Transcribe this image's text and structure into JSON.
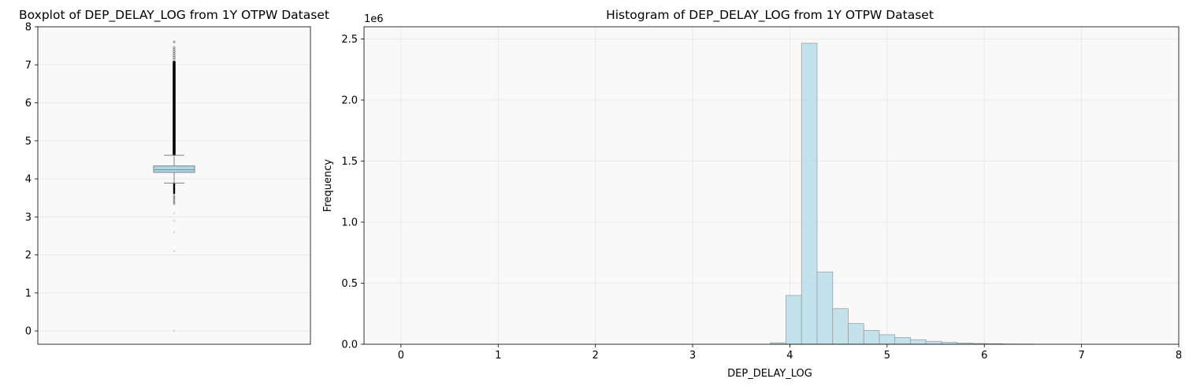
{
  "chart_data": [
    {
      "type": "boxplot",
      "title": "Boxplot of DEP_DELAY_LOG from 1Y OTPW Dataset",
      "xlabel": "",
      "ylabel": "",
      "ylim": [
        -0.35,
        8.0
      ],
      "yticks": [
        0,
        1,
        2,
        3,
        4,
        5,
        6,
        7,
        8
      ],
      "grid": true,
      "colors": {
        "box_fill": "#add8e6",
        "box_edge": "#808080",
        "background": "#f9f9f9",
        "outliers": "#000000"
      },
      "stats": {
        "q1": 4.17,
        "median": 4.24,
        "q3": 4.34,
        "whisker_low": 3.89,
        "whisker_high": 4.62
      },
      "outliers": {
        "dense_high": [
          4.62,
          7.1
        ],
        "sparse_high": [
          7.15,
          7.2,
          7.25,
          7.3,
          7.35,
          7.4,
          7.45,
          7.6
        ],
        "dense_low": [
          3.6,
          3.89
        ],
        "sparse_low": [
          3.35,
          3.4,
          3.45,
          3.5,
          3.55,
          3.1,
          2.9,
          2.6,
          2.1,
          0.0
        ]
      }
    },
    {
      "type": "bar",
      "subtype": "histogram",
      "title": "Histogram of DEP_DELAY_LOG from 1Y OTPW Dataset",
      "xlabel": "DEP_DELAY_LOG",
      "ylabel": "Frequency",
      "y_offset_text": "1e6",
      "xlim": [
        -0.38,
        8.0
      ],
      "ylim": [
        0,
        2.6
      ],
      "xticks": [
        0,
        1,
        2,
        3,
        4,
        5,
        6,
        7,
        8
      ],
      "yticks": [
        0.0,
        0.5,
        1.0,
        1.5,
        2.0,
        2.5
      ],
      "ytick_labels": [
        "0.0",
        "0.5",
        "1.0",
        "1.5",
        "2.0",
        "2.5"
      ],
      "grid": true,
      "colors": {
        "bar_fill": "#add8e6",
        "bar_edge": "#a0a0a0",
        "background": "#f9f9f9"
      },
      "bin_width": 0.16,
      "bins": [
        {
          "x0": 3.8,
          "value": 0.012
        },
        {
          "x0": 3.96,
          "value": 0.4
        },
        {
          "x0": 4.12,
          "value": 2.465
        },
        {
          "x0": 4.28,
          "value": 0.592
        },
        {
          "x0": 4.44,
          "value": 0.292
        },
        {
          "x0": 4.6,
          "value": 0.17
        },
        {
          "x0": 4.76,
          "value": 0.113
        },
        {
          "x0": 4.92,
          "value": 0.078
        },
        {
          "x0": 5.08,
          "value": 0.055
        },
        {
          "x0": 5.24,
          "value": 0.037
        },
        {
          "x0": 5.4,
          "value": 0.024
        },
        {
          "x0": 5.56,
          "value": 0.016
        },
        {
          "x0": 5.72,
          "value": 0.01
        },
        {
          "x0": 5.88,
          "value": 0.006
        },
        {
          "x0": 6.04,
          "value": 0.004
        },
        {
          "x0": 6.2,
          "value": 0.002
        },
        {
          "x0": 6.36,
          "value": 0.001
        }
      ]
    }
  ]
}
